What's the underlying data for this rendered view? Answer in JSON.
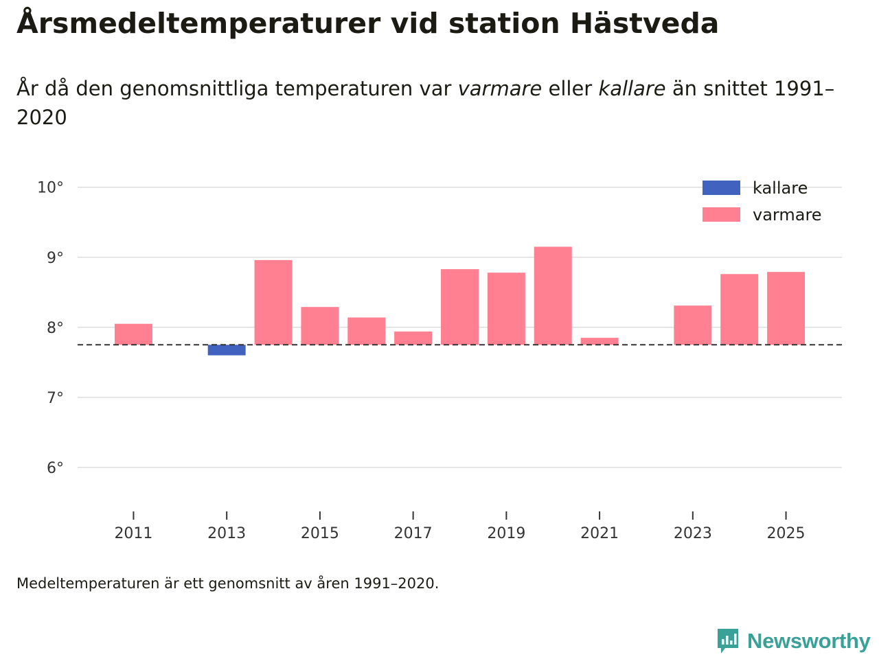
{
  "header": {
    "title": "Årsmedeltemperaturer vid station Hästveda",
    "subtitle_part1": "År då den genomsnittliga temperaturen var ",
    "subtitle_em1": "varmare",
    "subtitle_part2": " eller ",
    "subtitle_em2": "kallare",
    "subtitle_part3": " än snittet 1991–2020"
  },
  "footer": {
    "note": "Medeltemperaturen är ett genomsnitt av åren 1991–2020.",
    "brand": "Newsworthy"
  },
  "colors": {
    "warmer": "#ff8090",
    "colder": "#4162bf",
    "brand": "#3aa198",
    "grid": "#dddddd",
    "text": "#1b1b14"
  },
  "chart_data": {
    "type": "bar",
    "title": "Årsmedeltemperaturer vid station Hästveda",
    "xlabel": "",
    "ylabel": "",
    "baseline": 7.75,
    "ylim": [
      5.45,
      10.35
    ],
    "y_ticks": [
      6,
      7,
      8,
      9,
      10
    ],
    "y_tick_labels": [
      "6°",
      "7°",
      "8°",
      "9°",
      "10°"
    ],
    "x_ticks": [
      2011,
      2013,
      2015,
      2017,
      2019,
      2021,
      2023,
      2025
    ],
    "x_tick_labels": [
      "2011",
      "2013",
      "2015",
      "2017",
      "2019",
      "2021",
      "2023",
      "2025"
    ],
    "xlim": [
      2009.8,
      2026.2
    ],
    "legend_position": "top-right",
    "legend": [
      {
        "name": "kallare",
        "color": "#4162bf"
      },
      {
        "name": "varmare",
        "color": "#ff8090"
      }
    ],
    "data": [
      {
        "year": 2011,
        "value": 8.05,
        "category": "varmare"
      },
      {
        "year": 2013,
        "value": 7.6,
        "category": "kallare"
      },
      {
        "year": 2014,
        "value": 8.96,
        "category": "varmare"
      },
      {
        "year": 2015,
        "value": 8.29,
        "category": "varmare"
      },
      {
        "year": 2016,
        "value": 8.14,
        "category": "varmare"
      },
      {
        "year": 2017,
        "value": 7.94,
        "category": "varmare"
      },
      {
        "year": 2018,
        "value": 8.83,
        "category": "varmare"
      },
      {
        "year": 2019,
        "value": 8.78,
        "category": "varmare"
      },
      {
        "year": 2020,
        "value": 9.15,
        "category": "varmare"
      },
      {
        "year": 2021,
        "value": 7.85,
        "category": "varmare"
      },
      {
        "year": 2023,
        "value": 8.31,
        "category": "varmare"
      },
      {
        "year": 2024,
        "value": 8.76,
        "category": "varmare"
      },
      {
        "year": 2025,
        "value": 8.79,
        "category": "varmare"
      }
    ]
  }
}
